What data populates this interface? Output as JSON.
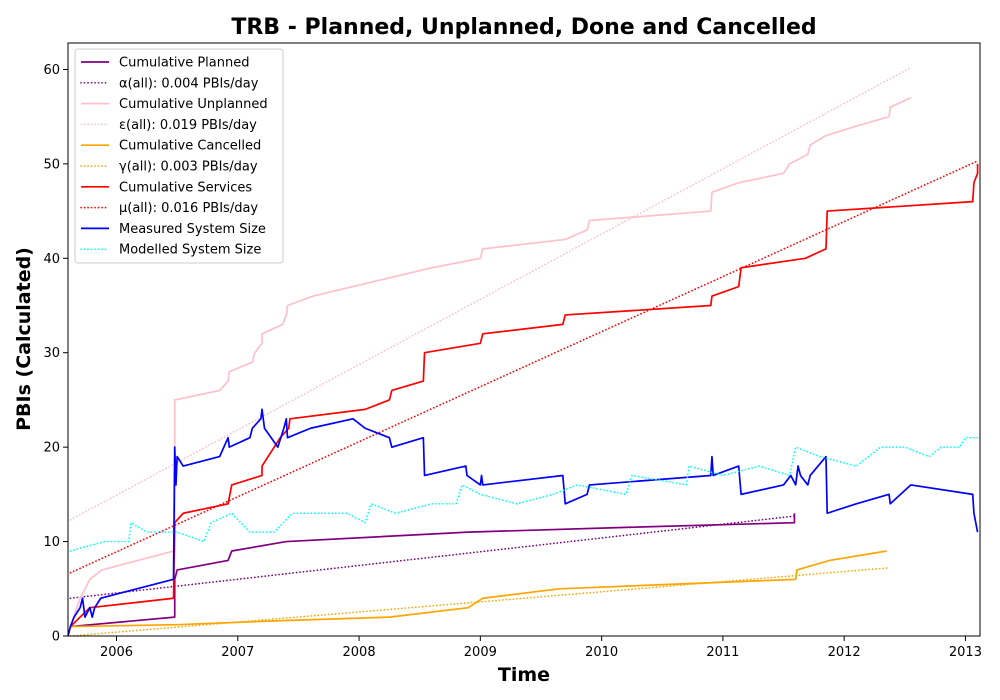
{
  "chart_data": {
    "type": "line",
    "title": "TRB - Planned, Unplanned, Done  and Cancelled",
    "xlabel": "Time",
    "ylabel": "PBIs (Calculated)",
    "xlim": [
      2005.6,
      2013.12
    ],
    "ylim": [
      0,
      62.8
    ],
    "xticks": [
      2006,
      2007,
      2008,
      2009,
      2010,
      2011,
      2012,
      2013
    ],
    "yticks": [
      0,
      10,
      20,
      30,
      40,
      50,
      60
    ],
    "grid": false,
    "legend_position": "top-left",
    "series": [
      {
        "name": "Cumulative Planned",
        "color": "#800080",
        "style": "solid",
        "points": [
          [
            2005.62,
            1
          ],
          [
            2005.62,
            1
          ],
          [
            2006.48,
            2
          ],
          [
            2006.48,
            6
          ],
          [
            2006.5,
            7
          ],
          [
            2006.92,
            8
          ],
          [
            2006.95,
            9
          ],
          [
            2007.4,
            10
          ],
          [
            2008.9,
            11
          ],
          [
            2010.2,
            11.5
          ],
          [
            2011.59,
            12
          ],
          [
            2011.59,
            13
          ]
        ]
      },
      {
        "name": "α(all): 0.004 PBIs/day",
        "color": "#800080",
        "style": "dotted",
        "points": [
          [
            2005.62,
            4
          ],
          [
            2011.59,
            12.7
          ]
        ]
      },
      {
        "name": "Cumulative Unplanned",
        "color": "#ffc0cb",
        "style": "solid",
        "points": [
          [
            2005.62,
            1
          ],
          [
            2005.7,
            4
          ],
          [
            2005.78,
            6
          ],
          [
            2005.88,
            7
          ],
          [
            2006.47,
            9
          ],
          [
            2006.48,
            9
          ],
          [
            2006.48,
            25
          ],
          [
            2006.85,
            26
          ],
          [
            2006.92,
            27
          ],
          [
            2006.93,
            28
          ],
          [
            2007.12,
            29
          ],
          [
            2007.14,
            30
          ],
          [
            2007.2,
            31
          ],
          [
            2007.2,
            32
          ],
          [
            2007.37,
            33
          ],
          [
            2007.4,
            34
          ],
          [
            2007.41,
            35
          ],
          [
            2007.62,
            36
          ],
          [
            2008.6,
            39
          ],
          [
            2009.0,
            40
          ],
          [
            2009.02,
            41
          ],
          [
            2009.7,
            42
          ],
          [
            2009.88,
            43
          ],
          [
            2009.9,
            44
          ],
          [
            2010.9,
            45
          ],
          [
            2010.91,
            47
          ],
          [
            2011.13,
            48
          ],
          [
            2011.5,
            49
          ],
          [
            2011.55,
            50
          ],
          [
            2011.7,
            51
          ],
          [
            2011.72,
            52
          ],
          [
            2011.85,
            53
          ],
          [
            2012.1,
            54
          ],
          [
            2012.37,
            55
          ],
          [
            2012.38,
            56
          ],
          [
            2012.55,
            57
          ]
        ]
      },
      {
        "name": "ε(all): 0.019 PBIs/day",
        "color": "#ffc0cb",
        "style": "dotted",
        "points": [
          [
            2005.62,
            12.3
          ],
          [
            2012.55,
            60.2
          ]
        ]
      },
      {
        "name": "Cumulative Cancelled",
        "color": "#ffa500",
        "style": "solid",
        "points": [
          [
            2005.62,
            1
          ],
          [
            2006.5,
            1.2
          ],
          [
            2007.3,
            1.6
          ],
          [
            2008.25,
            2
          ],
          [
            2008.9,
            3
          ],
          [
            2009.02,
            4
          ],
          [
            2009.65,
            5
          ],
          [
            2011.6,
            6
          ],
          [
            2011.61,
            7
          ],
          [
            2011.88,
            8
          ],
          [
            2012.35,
            9
          ]
        ]
      },
      {
        "name": "γ(all): 0.003 PBIs/day",
        "color": "#ffa500",
        "style": "dotted",
        "points": [
          [
            2005.62,
            0
          ],
          [
            2012.35,
            7.2
          ]
        ]
      },
      {
        "name": "Cumulative Services",
        "color": "#ff0000",
        "style": "solid",
        "points": [
          [
            2005.62,
            1
          ],
          [
            2005.78,
            3
          ],
          [
            2006.47,
            4
          ],
          [
            2006.48,
            12
          ],
          [
            2006.55,
            13
          ],
          [
            2006.92,
            14
          ],
          [
            2006.95,
            16
          ],
          [
            2007.2,
            17
          ],
          [
            2007.2,
            18
          ],
          [
            2007.35,
            21
          ],
          [
            2007.42,
            22
          ],
          [
            2007.43,
            23
          ],
          [
            2008.05,
            24
          ],
          [
            2008.25,
            25
          ],
          [
            2008.27,
            26
          ],
          [
            2008.53,
            27
          ],
          [
            2008.54,
            30
          ],
          [
            2009.0,
            31
          ],
          [
            2009.02,
            32
          ],
          [
            2009.68,
            33
          ],
          [
            2009.7,
            34
          ],
          [
            2010.9,
            35
          ],
          [
            2010.91,
            36
          ],
          [
            2011.13,
            37
          ],
          [
            2011.15,
            39
          ],
          [
            2011.68,
            40
          ],
          [
            2011.85,
            41
          ],
          [
            2011.86,
            45
          ],
          [
            2013.06,
            46
          ],
          [
            2013.07,
            48
          ],
          [
            2013.1,
            49
          ],
          [
            2013.1,
            50
          ]
        ]
      },
      {
        "name": "μ(all): 0.016 PBIs/day",
        "color": "#ff0000",
        "style": "dotted",
        "points": [
          [
            2005.62,
            6.7
          ],
          [
            2013.1,
            50.3
          ]
        ]
      },
      {
        "name": "Measured System Size",
        "color": "#0000ff",
        "style": "solid",
        "points": [
          [
            2005.6,
            0
          ],
          [
            2005.62,
            1
          ],
          [
            2005.65,
            2
          ],
          [
            2005.7,
            3
          ],
          [
            2005.72,
            4
          ],
          [
            2005.74,
            2
          ],
          [
            2005.78,
            3
          ],
          [
            2005.8,
            2
          ],
          [
            2005.82,
            3
          ],
          [
            2005.87,
            4
          ],
          [
            2006.47,
            6
          ],
          [
            2006.48,
            20
          ],
          [
            2006.49,
            16
          ],
          [
            2006.5,
            19
          ],
          [
            2006.55,
            18
          ],
          [
            2006.85,
            19
          ],
          [
            2006.92,
            21
          ],
          [
            2006.93,
            20
          ],
          [
            2007.1,
            21
          ],
          [
            2007.12,
            22
          ],
          [
            2007.19,
            23
          ],
          [
            2007.2,
            24
          ],
          [
            2007.22,
            22
          ],
          [
            2007.33,
            20
          ],
          [
            2007.38,
            22
          ],
          [
            2007.4,
            23
          ],
          [
            2007.41,
            21
          ],
          [
            2007.6,
            22
          ],
          [
            2007.95,
            23
          ],
          [
            2008.05,
            22
          ],
          [
            2008.25,
            21
          ],
          [
            2008.27,
            20
          ],
          [
            2008.53,
            21
          ],
          [
            2008.54,
            17
          ],
          [
            2008.88,
            18
          ],
          [
            2008.89,
            17
          ],
          [
            2009.0,
            16
          ],
          [
            2009.01,
            17
          ],
          [
            2009.02,
            16
          ],
          [
            2009.68,
            17
          ],
          [
            2009.7,
            14
          ],
          [
            2009.88,
            15
          ],
          [
            2009.9,
            16
          ],
          [
            2010.9,
            17
          ],
          [
            2010.91,
            19
          ],
          [
            2010.92,
            17
          ],
          [
            2011.13,
            18
          ],
          [
            2011.15,
            15
          ],
          [
            2011.5,
            16
          ],
          [
            2011.56,
            17
          ],
          [
            2011.6,
            16
          ],
          [
            2011.62,
            18
          ],
          [
            2011.64,
            17
          ],
          [
            2011.7,
            16
          ],
          [
            2011.72,
            17
          ],
          [
            2011.85,
            19
          ],
          [
            2011.86,
            13
          ],
          [
            2012.1,
            14
          ],
          [
            2012.37,
            15
          ],
          [
            2012.38,
            14
          ],
          [
            2012.55,
            16
          ],
          [
            2013.06,
            15
          ],
          [
            2013.07,
            13
          ],
          [
            2013.1,
            11
          ]
        ]
      },
      {
        "name": "Modelled System Size",
        "color": "#00ffff",
        "style": "dotted",
        "points": [
          [
            2005.62,
            9
          ],
          [
            2005.9,
            10
          ],
          [
            2006.1,
            10
          ],
          [
            2006.12,
            12
          ],
          [
            2006.25,
            11
          ],
          [
            2006.5,
            11
          ],
          [
            2006.72,
            10
          ],
          [
            2006.78,
            12
          ],
          [
            2006.95,
            13
          ],
          [
            2007.1,
            11
          ],
          [
            2007.3,
            11
          ],
          [
            2007.45,
            13
          ],
          [
            2007.9,
            13
          ],
          [
            2008.05,
            12
          ],
          [
            2008.1,
            14
          ],
          [
            2008.3,
            13
          ],
          [
            2008.6,
            14
          ],
          [
            2008.8,
            14
          ],
          [
            2008.85,
            16
          ],
          [
            2009.0,
            15
          ],
          [
            2009.3,
            14
          ],
          [
            2009.6,
            15
          ],
          [
            2009.8,
            16
          ],
          [
            2010.2,
            15
          ],
          [
            2010.25,
            17
          ],
          [
            2010.7,
            16
          ],
          [
            2010.72,
            18
          ],
          [
            2011.0,
            17
          ],
          [
            2011.3,
            18
          ],
          [
            2011.55,
            17
          ],
          [
            2011.6,
            20
          ],
          [
            2011.8,
            19
          ],
          [
            2012.1,
            18
          ],
          [
            2012.3,
            20
          ],
          [
            2012.5,
            20
          ],
          [
            2012.7,
            19
          ],
          [
            2012.8,
            20
          ],
          [
            2012.95,
            20
          ],
          [
            2013.0,
            21
          ],
          [
            2013.1,
            21
          ]
        ]
      }
    ]
  }
}
